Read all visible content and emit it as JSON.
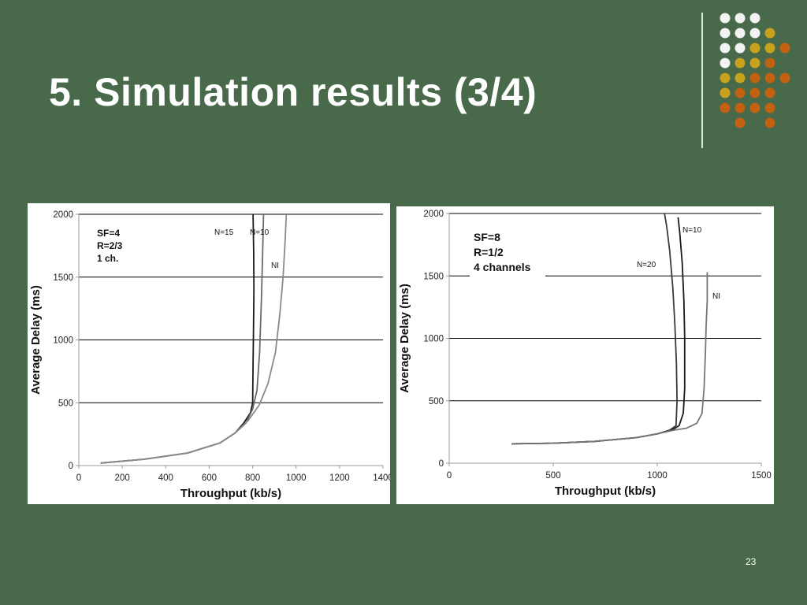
{
  "slide": {
    "title": "5. Simulation results (3/4)",
    "page_number": "23",
    "colors": {
      "background": "#48694a",
      "dot_white": "#f2f2f2",
      "dot_gold": "#c8a21c",
      "dot_orange": "#c2610f"
    }
  },
  "chart_data": [
    {
      "type": "line",
      "xlabel": "Throughput (kb/s)",
      "ylabel": "Average Delay (ms)",
      "xlim": [
        0,
        1400
      ],
      "ylim": [
        0,
        2000
      ],
      "xticks": [
        "0",
        "200",
        "400",
        "600",
        "800",
        "1000",
        "1200",
        "1400"
      ],
      "yticks": [
        "0",
        "500",
        "1000",
        "1500",
        "2000"
      ],
      "grid": "horizontal",
      "annotations": [
        "SF=4",
        "R=2/3",
        "1 ch."
      ],
      "series": [
        {
          "name": "N=15",
          "color": "#1a1a1a",
          "x": [
            100,
            300,
            500,
            650,
            720,
            760,
            790,
            800,
            802,
            804,
            806,
            805,
            802
          ],
          "y": [
            20,
            50,
            100,
            180,
            260,
            340,
            420,
            500,
            800,
            1100,
            1400,
            1700,
            2000
          ]
        },
        {
          "name": "N=10",
          "color": "#6a6a6a",
          "x": [
            100,
            300,
            500,
            650,
            720,
            770,
            800,
            820,
            832,
            840,
            846,
            850
          ],
          "y": [
            20,
            50,
            100,
            180,
            260,
            340,
            450,
            600,
            900,
            1300,
            1700,
            2000
          ]
        },
        {
          "name": "NI",
          "color": "#8a8a8a",
          "x": [
            100,
            300,
            500,
            650,
            720,
            780,
            830,
            870,
            905,
            925,
            940,
            950,
            955
          ],
          "y": [
            20,
            50,
            100,
            180,
            260,
            360,
            480,
            650,
            900,
            1200,
            1500,
            1800,
            2000
          ]
        }
      ]
    },
    {
      "type": "line",
      "xlabel": "Throughput (kb/s)",
      "ylabel": "Average Delay (ms)",
      "xlim": [
        0,
        1500
      ],
      "ylim": [
        0,
        2000
      ],
      "xticks": [
        "0",
        "500",
        "1000",
        "1500"
      ],
      "yticks": [
        "0",
        "500",
        "1000",
        "1500",
        "2000"
      ],
      "grid": "horizontal",
      "annotations": [
        "SF=8",
        "R=1/2",
        "4 channels"
      ],
      "series": [
        {
          "name": "N=20",
          "color": "#3a3a3a",
          "x": [
            300,
            500,
            700,
            900,
            1000,
            1060,
            1090,
            1095,
            1092,
            1085,
            1075,
            1060,
            1045,
            1035
          ],
          "y": [
            155,
            160,
            175,
            205,
            235,
            265,
            300,
            500,
            800,
            1100,
            1400,
            1700,
            1900,
            2000
          ]
        },
        {
          "name": "N=10",
          "color": "#1a1a1a",
          "x": [
            300,
            500,
            700,
            900,
            1000,
            1070,
            1105,
            1125,
            1132,
            1132,
            1128,
            1120,
            1108,
            1100
          ],
          "y": [
            155,
            160,
            175,
            205,
            235,
            265,
            300,
            400,
            600,
            1000,
            1300,
            1600,
            1850,
            1970
          ]
        },
        {
          "name": "NI",
          "color": "#777777",
          "x": [
            300,
            500,
            700,
            900,
            1000,
            1080,
            1140,
            1190,
            1215,
            1225,
            1232,
            1235,
            1240,
            1240
          ],
          "y": [
            155,
            160,
            175,
            205,
            235,
            265,
            280,
            320,
            400,
            600,
            900,
            1100,
            1300,
            1530
          ]
        }
      ]
    }
  ]
}
